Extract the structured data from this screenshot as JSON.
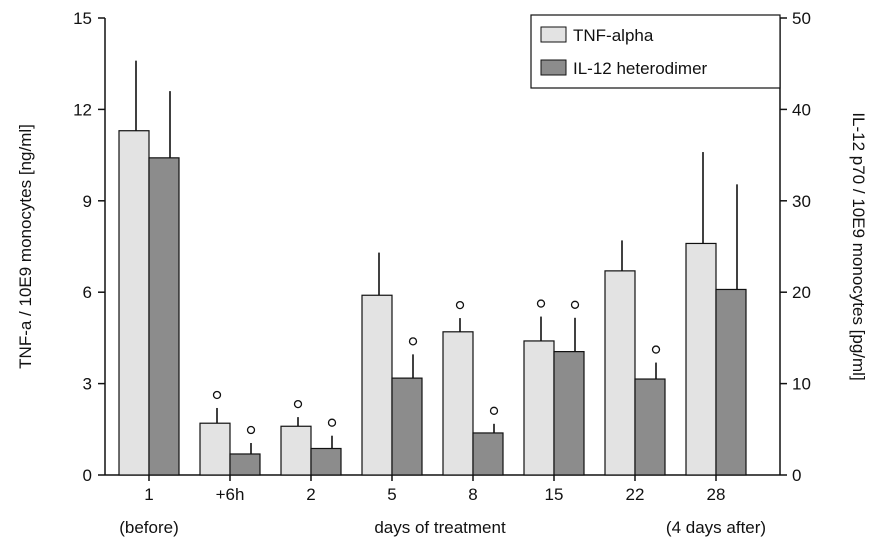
{
  "chart_data": {
    "type": "bar",
    "title": "",
    "xlabel": "days of treatment",
    "ylabel": "TNF-a / 10E9 monocytes [ng/ml]",
    "y2label": "IL-12 p70 / 10E9 monocytes [pg/ml]",
    "categories": [
      "1",
      "+6h",
      "2",
      "5",
      "8",
      "15",
      "22",
      "28"
    ],
    "category_sublabels": [
      "(before)",
      "",
      "",
      "",
      "",
      "",
      "",
      "(4 days after)"
    ],
    "ylim": [
      0,
      15
    ],
    "y2lim": [
      0,
      50
    ],
    "yticks": [
      0,
      3,
      6,
      9,
      12,
      15
    ],
    "y2ticks": [
      0,
      10,
      20,
      30,
      40,
      50
    ],
    "grid": false,
    "legend_position": "top-right",
    "series": [
      {
        "name": "TNF-alpha",
        "axis": "left",
        "color": "#e3e3e3",
        "values": [
          11.3,
          1.7,
          1.6,
          5.9,
          4.7,
          4.4,
          6.7,
          7.6
        ],
        "errors": [
          2.3,
          0.5,
          0.3,
          1.4,
          0.45,
          0.8,
          1.0,
          3.0
        ],
        "significant": [
          false,
          true,
          true,
          false,
          true,
          true,
          false,
          false
        ]
      },
      {
        "name": "IL-12 heterodimer",
        "axis": "right",
        "color": "#8c8c8c",
        "values": [
          34.7,
          2.3,
          2.9,
          10.6,
          4.6,
          13.5,
          10.5,
          20.3
        ],
        "errors": [
          7.3,
          1.2,
          1.4,
          2.6,
          1.0,
          3.7,
          1.8,
          11.5
        ],
        "significant": [
          false,
          true,
          true,
          true,
          true,
          true,
          true,
          false
        ]
      }
    ]
  }
}
